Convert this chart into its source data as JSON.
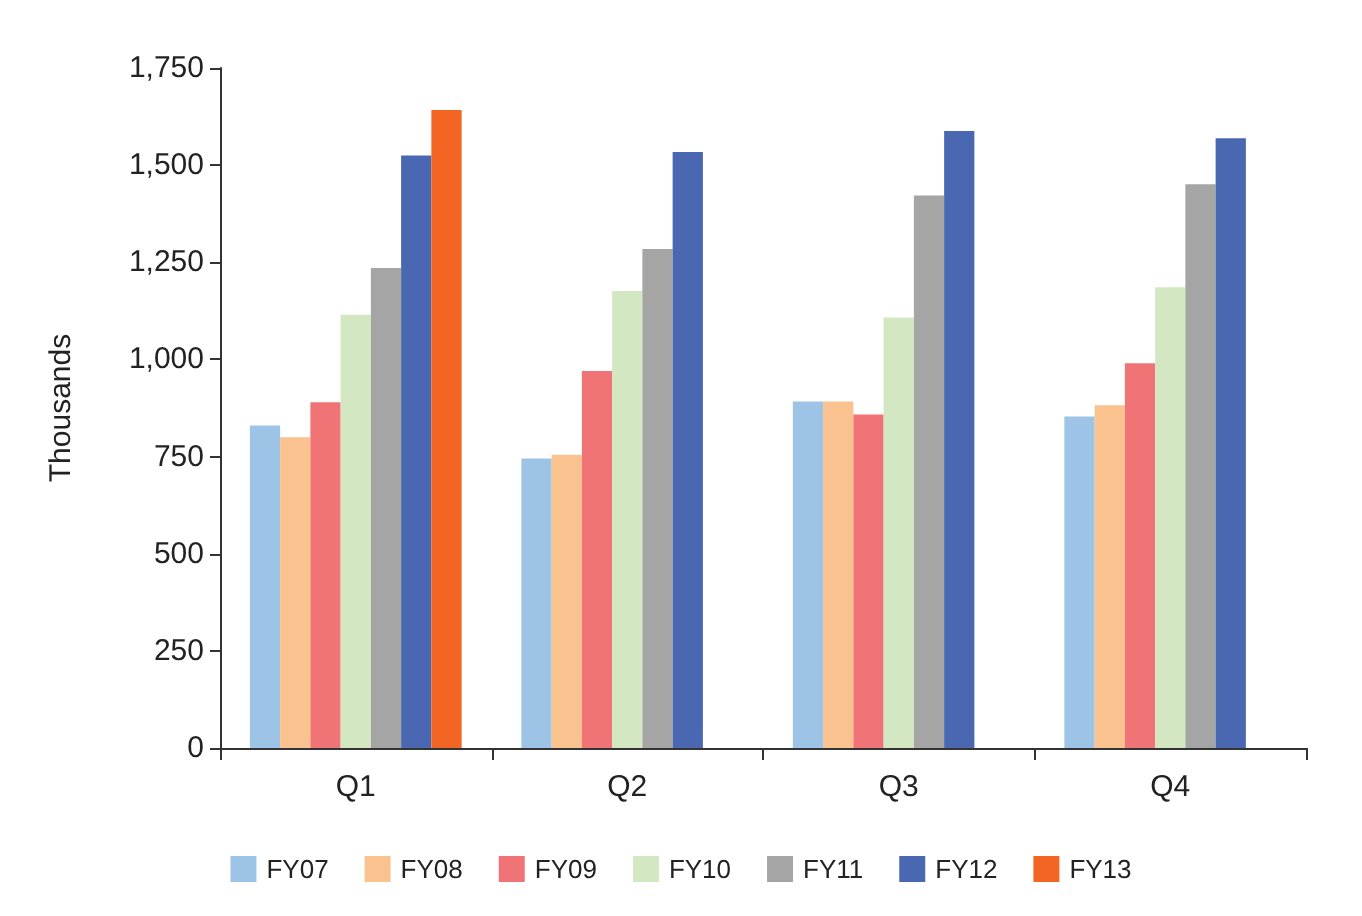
{
  "chart_data": {
    "type": "bar",
    "ylabel": "Thousands",
    "categories": [
      "Q1",
      "Q2",
      "Q3",
      "Q4"
    ],
    "series": [
      {
        "name": "FY07",
        "color": "#9dc3e6",
        "values": [
          830,
          745,
          892,
          853
        ]
      },
      {
        "name": "FY08",
        "color": "#f9c28f",
        "values": [
          800,
          755,
          892,
          882
        ]
      },
      {
        "name": "FY09",
        "color": "#f07476",
        "values": [
          890,
          970,
          858,
          990
        ]
      },
      {
        "name": "FY10",
        "color": "#d3e8c2",
        "values": [
          1115,
          1176,
          1108,
          1186
        ]
      },
      {
        "name": "FY11",
        "color": "#a5a5a5",
        "values": [
          1235,
          1284,
          1422,
          1451
        ]
      },
      {
        "name": "FY12",
        "color": "#4a67b1",
        "values": [
          1525,
          1534,
          1588,
          1569
        ]
      },
      {
        "name": "FY13",
        "color": "#f26522",
        "values": [
          1642,
          null,
          null,
          null
        ]
      }
    ],
    "ylim": [
      0,
      1750
    ],
    "yticks": [
      0,
      250,
      500,
      750,
      {
        "value": 1000,
        "label": "1,000"
      },
      {
        "value": 1250,
        "label": "1,250"
      },
      {
        "value": 1500,
        "label": "1,500"
      },
      {
        "value": 1750,
        "label": "1,750"
      }
    ],
    "grid": false,
    "legend": "bottom"
  }
}
